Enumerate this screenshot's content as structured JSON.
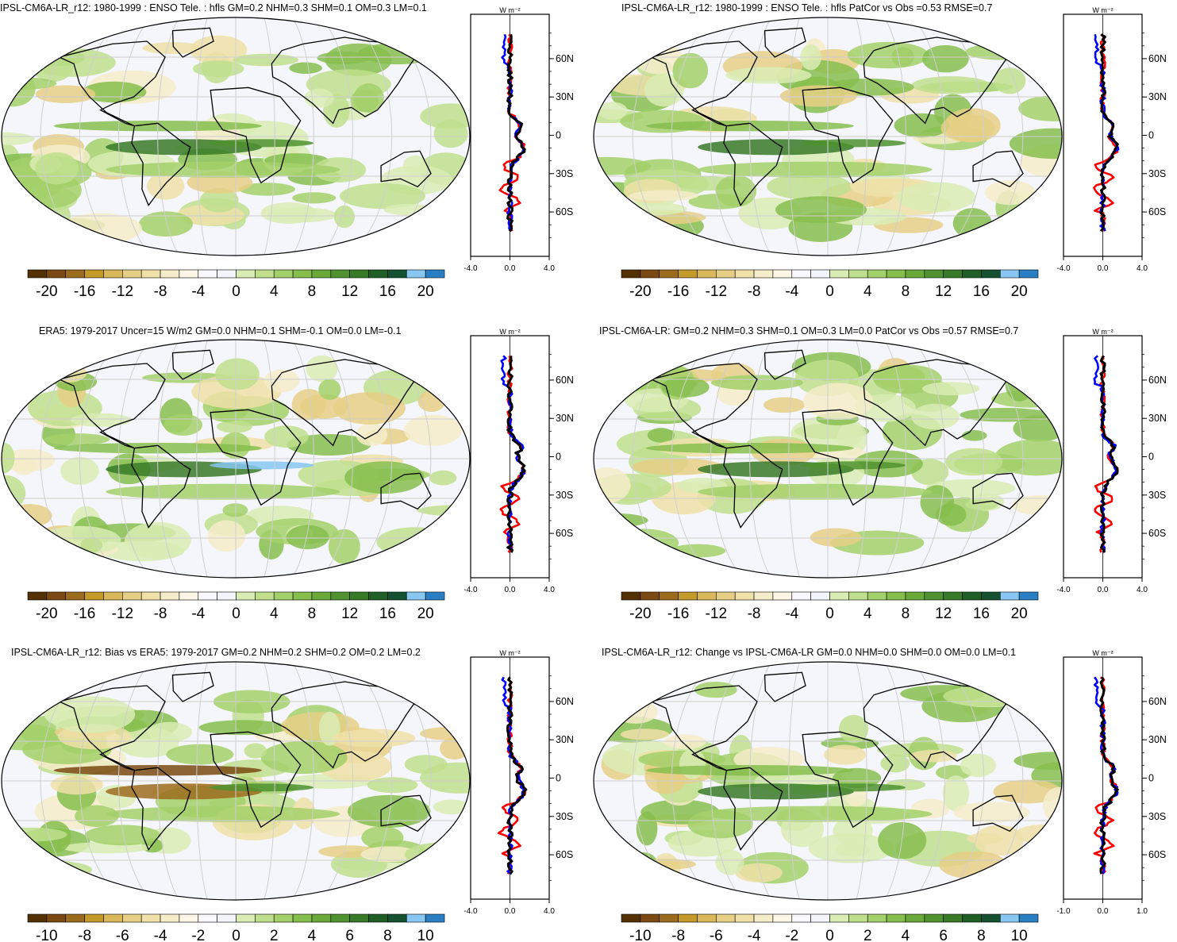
{
  "panels": [
    {
      "id": "p1",
      "title": "IPSL-CM6A-LR_r12: 1980-1999 : ENSO Tele. : hfls GM=0.2 NHM=0.3 SHM=0.1 OM=0.3 LM=0.1",
      "colorbar": {
        "labels": [
          "-20",
          "-16",
          "-12",
          "-8",
          "-4",
          "0",
          "4",
          "8",
          "12",
          "16",
          "20"
        ],
        "range": [
          -22,
          22
        ]
      },
      "zonal": {
        "unit": "W m⁻²",
        "xticks": [
          "-4.0",
          "0.0",
          "4.0"
        ],
        "xlim": [
          -4,
          4
        ],
        "lat_labels": [
          "60N",
          "30N",
          "0",
          "30S",
          "60S"
        ]
      }
    },
    {
      "id": "p2",
      "title": "IPSL-CM6A-LR_r12: 1980-1999 : ENSO Tele. : hfls PatCor vs Obs =0.53 RMSE=0.7",
      "colorbar": {
        "labels": [
          "-20",
          "-16",
          "-12",
          "-8",
          "-4",
          "0",
          "4",
          "8",
          "12",
          "16",
          "20"
        ],
        "range": [
          -22,
          22
        ]
      },
      "zonal": {
        "unit": "W m⁻²",
        "xticks": [
          "-4.0",
          "0.0",
          "4.0"
        ],
        "xlim": [
          -4,
          4
        ],
        "lat_labels": [
          "60N",
          "30N",
          "0",
          "30S",
          "60S"
        ]
      }
    },
    {
      "id": "p3",
      "title": "ERA5: 1979-2017 Uncer=15 W/m2 GM=0.0 NHM=0.1 SHM=-0.1 OM=0.0 LM=-0.1",
      "colorbar": {
        "labels": [
          "-20",
          "-16",
          "-12",
          "-8",
          "-4",
          "0",
          "4",
          "8",
          "12",
          "16",
          "20"
        ],
        "range": [
          -22,
          22
        ]
      },
      "zonal": {
        "unit": "W m⁻²",
        "xticks": [
          "-4.0",
          "0.0",
          "4.0"
        ],
        "xlim": [
          -4,
          4
        ],
        "lat_labels": [
          "60N",
          "30N",
          "0",
          "30S",
          "60S"
        ]
      }
    },
    {
      "id": "p4",
      "title": "IPSL-CM6A-LR: GM=0.2 NHM=0.3 SHM=0.1 OM=0.3 LM=0.0 PatCor vs Obs =0.57 RMSE=0.7",
      "colorbar": {
        "labels": [
          "-20",
          "-16",
          "-12",
          "-8",
          "-4",
          "0",
          "4",
          "8",
          "12",
          "16",
          "20"
        ],
        "range": [
          -22,
          22
        ]
      },
      "zonal": {
        "unit": "W m⁻²",
        "xticks": [
          "-4.0",
          "0.0",
          "4.0"
        ],
        "xlim": [
          -4,
          4
        ],
        "lat_labels": [
          "60N",
          "30N",
          "0",
          "30S",
          "60S"
        ]
      }
    },
    {
      "id": "p5",
      "title": "IPSL-CM6A-LR_r12: Bias vs ERA5: 1979-2017 GM=0.2 NHM=0.2 SHM=0.2 OM=0.2 LM=0.2",
      "colorbar": {
        "labels": [
          "-10",
          "-8",
          "-6",
          "-4",
          "-2",
          "0",
          "2",
          "4",
          "6",
          "8",
          "10"
        ],
        "range": [
          -11,
          11
        ]
      },
      "zonal": {
        "unit": "W m⁻²",
        "xticks": [
          "-4.0",
          "0.0",
          "4.0"
        ],
        "xlim": [
          -4,
          4
        ],
        "lat_labels": [
          "60N",
          "30N",
          "0",
          "30S",
          "60S"
        ]
      }
    },
    {
      "id": "p6",
      "title": "IPSL-CM6A-LR_r12: Change vs IPSL-CM6A-LR GM=0.0 NHM=0.0 SHM=0.0 OM=0.0 LM=0.1",
      "colorbar": {
        "labels": [
          "-10",
          "-8",
          "-6",
          "-4",
          "-2",
          "0",
          "2",
          "4",
          "6",
          "8",
          "10"
        ],
        "range": [
          -11,
          11
        ]
      },
      "zonal": {
        "unit": "W m⁻²",
        "xticks": [
          "-1.0",
          "0.0",
          "1.0"
        ],
        "xlim": [
          -2,
          2
        ],
        "lat_labels": [
          "60N",
          "30N",
          "0",
          "30S",
          "60S"
        ]
      }
    }
  ],
  "colors": {
    "palette": [
      "#543005",
      "#7a4a12",
      "#9c6c1e",
      "#c49a2b",
      "#d8b85a",
      "#e6cf85",
      "#efe0a8",
      "#f5ecc9",
      "#fbf6e6",
      "#f8f8fc",
      "#f3f5fb",
      "#d9ecb4",
      "#c0df8d",
      "#a3d06a",
      "#86be4d",
      "#6aa83a",
      "#4f922f",
      "#387a28",
      "#1f5e25",
      "#155030",
      "#87c7f2",
      "#2a7fc4"
    ],
    "ocean": "#f5f6fb",
    "grid": "#cfcfcf",
    "coast": "#000000",
    "line_model": "#ff0000",
    "line_obs": "#0000ff",
    "line_mean": "#000000"
  }
}
